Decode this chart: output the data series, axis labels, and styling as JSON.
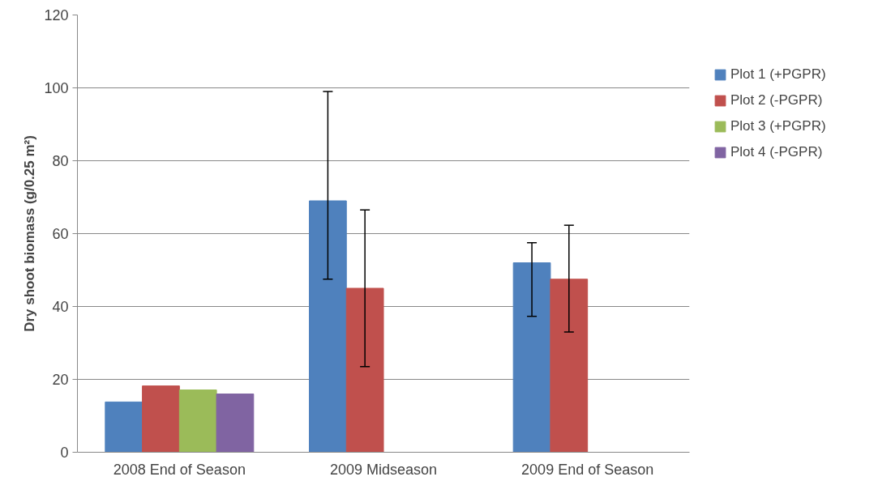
{
  "chart_data": {
    "type": "bar",
    "ylabel": "Dry shoot biomass (g/0.25 m²)",
    "categories": [
      "2008 End of Season",
      "2009 Midseason",
      "2009 End of Season"
    ],
    "series": [
      {
        "name": "Plot 1 (+PGPR)",
        "color": "#4f81bd",
        "values": [
          13.8,
          69,
          52
        ],
        "errors": [
          null,
          [
            47.5,
            99
          ],
          [
            37.3,
            57.5
          ]
        ]
      },
      {
        "name": "Plot 2 (-PGPR)",
        "color": "#c0504d",
        "values": [
          18.2,
          45,
          47.5
        ],
        "errors": [
          null,
          [
            23.5,
            66.5
          ],
          [
            33,
            62.3
          ]
        ]
      },
      {
        "name": "Plot 3 (+PGPR)",
        "color": "#9bbb59",
        "values": [
          17.1,
          null,
          null
        ]
      },
      {
        "name": "Plot 4 (-PGPR)",
        "color": "#8064a2",
        "values": [
          16,
          null,
          null
        ]
      }
    ],
    "ylim": [
      0,
      120
    ],
    "yticks": [
      0,
      20,
      40,
      60,
      80,
      100,
      120
    ],
    "grid": "y",
    "legend": "right"
  }
}
